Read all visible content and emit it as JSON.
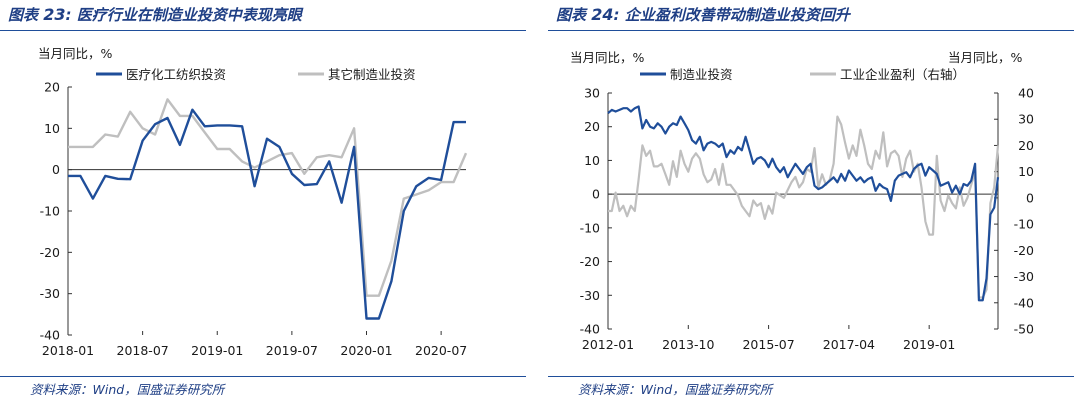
{
  "left": {
    "title_prefix": "图表",
    "title_number": "23",
    "title_text": ": 医疗行业在制造业投资中表现亮眼",
    "source": "资料来源：Wind，国盛证券研究所",
    "chart_data": {
      "type": "line",
      "ylabel": "当月同比，%",
      "ylim": [
        -40,
        20
      ],
      "yticks": [
        20,
        10,
        0,
        -10,
        -20,
        -30,
        -40
      ],
      "xtick_labels": [
        "2018-01",
        "2018-07",
        "2019-01",
        "2019-07",
        "2020-01",
        "2020-07"
      ],
      "xtick_index": [
        0,
        6,
        12,
        18,
        24,
        30
      ],
      "n_points": 33,
      "legend_position": "top",
      "grid": false,
      "series": [
        {
          "name": "医疗化工纺织投资",
          "color": "#1f4e9a",
          "values": [
            -1.5,
            -1.5,
            -7,
            -1.5,
            -2.2,
            -2.3,
            7,
            11,
            12.5,
            6,
            14.5,
            10.5,
            10.7,
            10.7,
            10.5,
            -4,
            7.5,
            5.5,
            -1,
            -3.7,
            -3.5,
            2,
            -8,
            5.5,
            -36,
            -36,
            -27,
            -10,
            -4,
            -2,
            -2.5,
            11.5,
            11.5
          ]
        },
        {
          "name": "其它制造业投资",
          "color": "#bfbfbf",
          "values": [
            5.5,
            5.5,
            5.5,
            8.5,
            8,
            14,
            10,
            8.5,
            17,
            13,
            13,
            9,
            5,
            5,
            2,
            0.5,
            2,
            3.5,
            4,
            -1,
            3,
            3.5,
            3,
            10,
            -30.5,
            -30.5,
            -22,
            -7,
            -6,
            -5,
            -3,
            -3,
            4
          ]
        }
      ]
    }
  },
  "right": {
    "title_prefix": "图表",
    "title_number": "24",
    "title_text": ": 企业盈利改善带动制造业投资回升",
    "source": "资料来源：Wind，国盛证券研究所",
    "chart_data": {
      "type": "line",
      "ylabel_left": "当月同比，%",
      "ylabel_right": "当月同比，%",
      "ylim_left": [
        -40,
        30
      ],
      "ylim_right": [
        -50,
        40
      ],
      "yticks_left": [
        30,
        20,
        10,
        0,
        -10,
        -20,
        -30,
        -40
      ],
      "yticks_right": [
        40,
        30,
        20,
        10,
        0,
        -10,
        -20,
        -30,
        -40,
        -50
      ],
      "xtick_labels": [
        "2012-01",
        "2013-10",
        "2015-07",
        "2017-04",
        "2019-01"
      ],
      "xtick_index": [
        0,
        21,
        42,
        63,
        84
      ],
      "n_points": 103,
      "legend_position": "top",
      "grid": false,
      "series": [
        {
          "name": "制造业投资",
          "axis": "left",
          "color": "#1f4e9a",
          "values": [
            24,
            25,
            24.5,
            25,
            25.5,
            25.5,
            24.5,
            25.5,
            26,
            19.5,
            22,
            20,
            19.5,
            21,
            20,
            18,
            20,
            21,
            20.5,
            23,
            21,
            19,
            16,
            15,
            17,
            13,
            15,
            15.5,
            15,
            14,
            15,
            11,
            13,
            12,
            14,
            13,
            17,
            13,
            9,
            10.5,
            11,
            10,
            8,
            10.5,
            8,
            6.5,
            8,
            5,
            7,
            9,
            7.5,
            6,
            8,
            9,
            2.5,
            1.5,
            2,
            3,
            4,
            5,
            3.5,
            6,
            4,
            7,
            5.5,
            4,
            5,
            3.5,
            4.5,
            5,
            1,
            3,
            2,
            1.5,
            -2,
            4,
            5.5,
            6,
            6.5,
            5,
            7.5,
            8.5,
            9,
            5.5,
            8,
            7,
            6,
            2.5,
            3,
            3.5,
            0.5,
            2.5,
            0,
            3,
            2.5,
            4,
            9,
            -31.5,
            -31.5,
            -25,
            -6,
            -4,
            5
          ]
        },
        {
          "name": "工业企业盈利（右轴）",
          "axis": "right",
          "color": "#bfbfbf",
          "values": [
            -5,
            -5,
            2,
            -5,
            -3,
            -7,
            -3,
            -5,
            7,
            20,
            16,
            18,
            12,
            12,
            13,
            9,
            5,
            14,
            8,
            18,
            13,
            10,
            15,
            17,
            15,
            9,
            6,
            7,
            11,
            5,
            13,
            5,
            5,
            3,
            1,
            -3,
            -5,
            -7,
            -1,
            -3,
            -2,
            -8,
            -3,
            -6,
            2,
            1,
            0,
            3,
            6,
            8,
            4,
            6,
            11,
            10,
            19,
            4,
            9,
            5,
            7,
            13,
            31,
            28,
            21,
            15,
            20,
            16,
            26,
            20,
            13,
            11,
            18,
            15,
            25,
            12,
            17,
            18,
            16,
            8,
            15,
            18,
            10,
            13,
            4,
            -9,
            -14,
            -14,
            16,
            -1,
            -5,
            1,
            -2,
            -4,
            4,
            -3,
            0,
            5,
            10,
            -38,
            -38,
            -35,
            -2,
            4,
            20
          ]
        }
      ]
    }
  }
}
